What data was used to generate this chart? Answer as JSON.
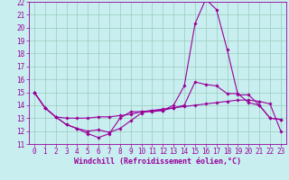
{
  "xlabel": "Windchill (Refroidissement éolien,°C)",
  "xlim": [
    -0.5,
    23.5
  ],
  "ylim": [
    11,
    22
  ],
  "yticks": [
    11,
    12,
    13,
    14,
    15,
    16,
    17,
    18,
    19,
    20,
    21,
    22
  ],
  "xticks": [
    0,
    1,
    2,
    3,
    4,
    5,
    6,
    7,
    8,
    9,
    10,
    11,
    12,
    13,
    14,
    15,
    16,
    17,
    18,
    19,
    20,
    21,
    22,
    23
  ],
  "bg_color": "#c8eef0",
  "line_color": "#990099",
  "grid_color": "#99ccbb",
  "line1": [
    15.0,
    13.8,
    13.1,
    12.5,
    12.2,
    11.8,
    11.5,
    11.8,
    13.0,
    13.5,
    13.5,
    13.5,
    13.6,
    14.0,
    15.5,
    20.3,
    22.2,
    21.4,
    18.3,
    14.8,
    14.8,
    14.0,
    13.0,
    12.9
  ],
  "line2": [
    15.0,
    13.8,
    13.1,
    12.5,
    12.2,
    12.0,
    12.1,
    11.9,
    12.2,
    12.8,
    13.4,
    13.6,
    13.6,
    13.8,
    14.0,
    15.8,
    15.6,
    15.5,
    14.9,
    14.9,
    14.2,
    14.0,
    13.0,
    12.9
  ],
  "line3": [
    15.0,
    13.8,
    13.1,
    13.0,
    13.0,
    13.0,
    13.1,
    13.1,
    13.2,
    13.3,
    13.5,
    13.6,
    13.7,
    13.8,
    13.9,
    14.0,
    14.1,
    14.2,
    14.3,
    14.4,
    14.4,
    14.3,
    14.1,
    12.0
  ],
  "marker": "D",
  "markersize": 1.8,
  "linewidth": 0.8,
  "tick_fontsize": 5.5,
  "xlabel_fontsize": 6.0
}
